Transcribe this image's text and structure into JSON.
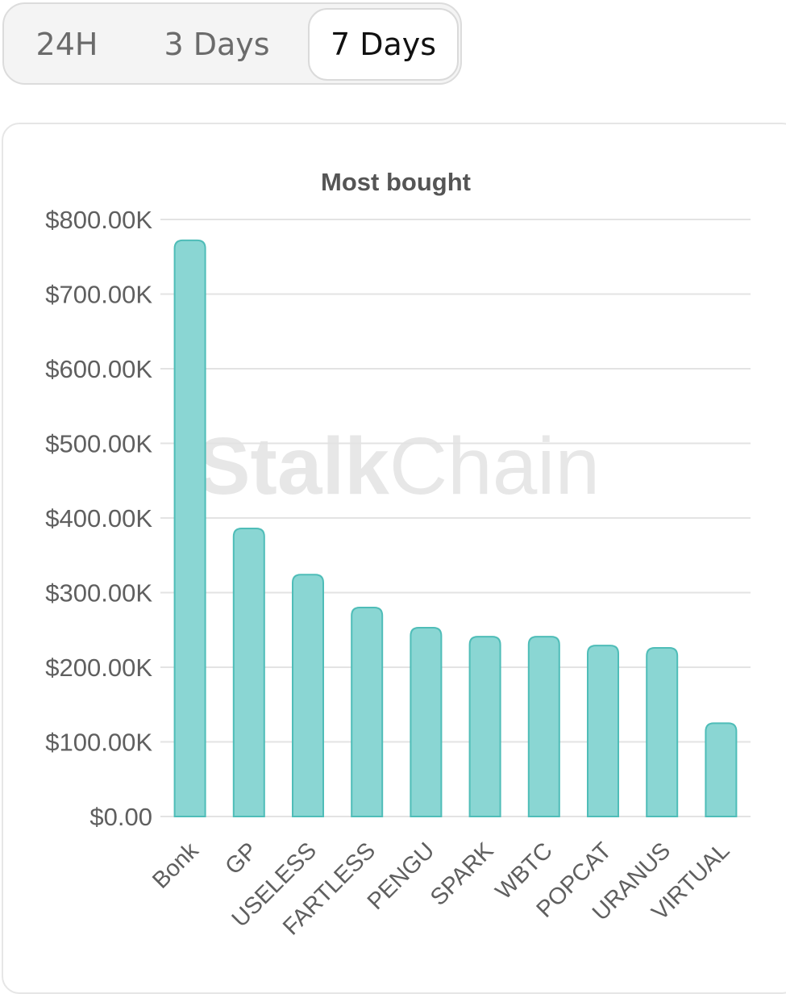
{
  "tabs": [
    {
      "label": "24H",
      "active": false
    },
    {
      "label": "3 Days",
      "active": false
    },
    {
      "label": "7 Days",
      "active": true
    }
  ],
  "watermark": {
    "part1": "Stalk",
    "part2": "Chain"
  },
  "colors": {
    "bar_fill": "#8ad6d3",
    "bar_stroke": "#4fbdb8",
    "grid": "#e3e3e3",
    "axis_text": "#5f5f5f",
    "title": "#555555"
  },
  "chart_data": {
    "type": "bar",
    "title": "Most bought",
    "categories": [
      "Bonk",
      "GP",
      "USELESS",
      "FARTLESS",
      "PENGU",
      "SPARK",
      "WBTC",
      "POPCAT",
      "URANUS",
      "VIRTUAL"
    ],
    "values": [
      772000,
      386000,
      324000,
      280000,
      253000,
      241000,
      241000,
      229000,
      226000,
      125000
    ],
    "ylim": [
      0,
      800000
    ],
    "yticks": [
      "$0.00",
      "$100.00K",
      "$200.00K",
      "$300.00K",
      "$400.00K",
      "$500.00K",
      "$600.00K",
      "$700.00K",
      "$800.00K"
    ],
    "grid": true,
    "xlabel": "",
    "ylabel": ""
  }
}
